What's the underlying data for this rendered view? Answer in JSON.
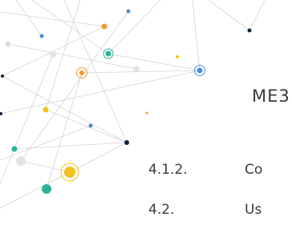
{
  "heading": "ME3",
  "items": [
    {
      "number": "4.1.2.",
      "text": "Co"
    },
    {
      "number": "4.2.",
      "text": "Us"
    }
  ]
}
